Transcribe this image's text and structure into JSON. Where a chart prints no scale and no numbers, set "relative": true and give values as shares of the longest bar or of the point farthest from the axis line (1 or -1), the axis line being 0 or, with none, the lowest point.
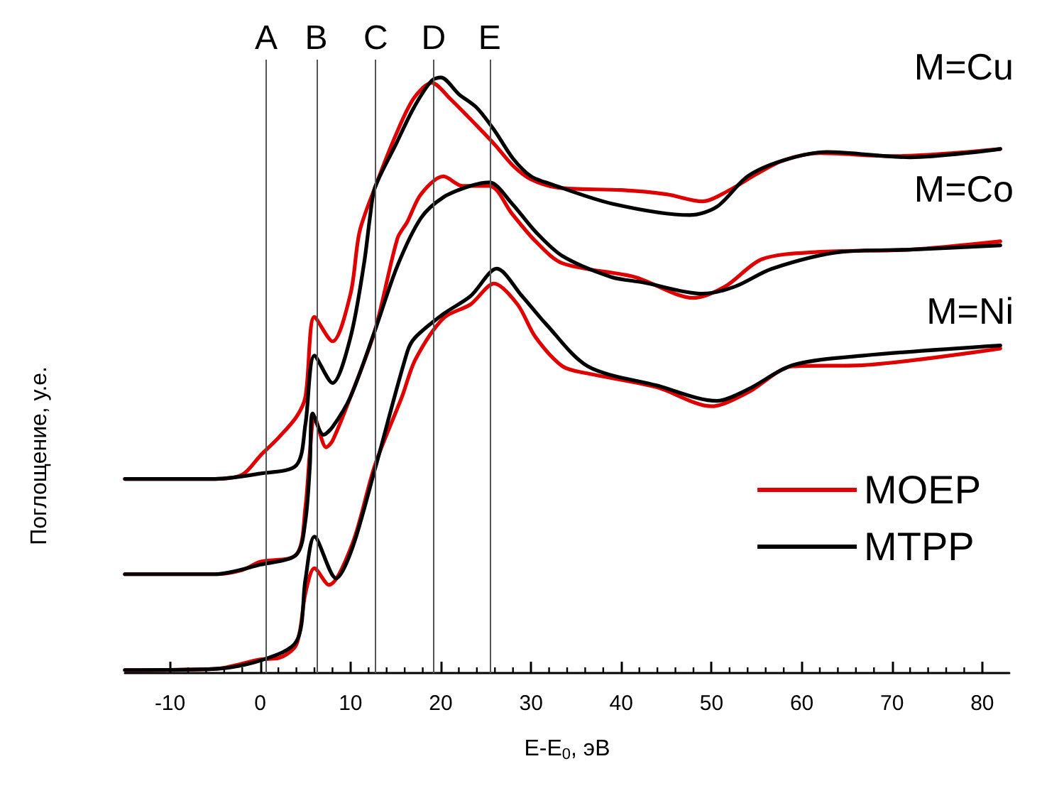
{
  "chart_data": {
    "type": "line",
    "relative": true,
    "xlabel": "E-E$_{0}$, эВ",
    "ylabel": "Поглощение, у.е.",
    "xlim": [
      -15,
      83
    ],
    "xticks": [
      -10,
      0,
      10,
      20,
      30,
      40,
      50,
      60,
      70,
      80
    ],
    "tick_labels": "x",
    "grid": false,
    "legend": "right",
    "marker": "none",
    "line_style": "solid",
    "series": [
      {
        "name": "MOEP",
        "color": "#e00000",
        "x": [
          -15,
          -5,
          -2,
          0,
          2,
          4,
          5,
          6,
          8,
          10,
          11,
          12.7,
          15,
          17,
          19,
          21,
          24,
          26,
          28,
          30,
          33,
          40,
          45,
          49,
          52,
          55,
          58,
          62,
          70,
          82
        ],
        "values": [
          0.326,
          0.326,
          0.333,
          0.365,
          0.395,
          0.43,
          0.464,
          0.598,
          0.557,
          0.637,
          0.741,
          0.815,
          0.903,
          0.965,
          0.991,
          0.965,
          0.919,
          0.887,
          0.852,
          0.829,
          0.815,
          0.811,
          0.804,
          0.792,
          0.811,
          0.838,
          0.861,
          0.873,
          0.868,
          0.88
        ]
      },
      {
        "name": "MTPP",
        "color": "#000000",
        "x": [
          -15,
          -5,
          0,
          4,
          5,
          6,
          8,
          10,
          11.5,
          12.2,
          12.7,
          15,
          17,
          19,
          20,
          22,
          24,
          26,
          28,
          30,
          32,
          39,
          47.6,
          50.6,
          54,
          58,
          62.8,
          72,
          82
        ],
        "values": [
          0.326,
          0.326,
          0.335,
          0.349,
          0.418,
          0.533,
          0.487,
          0.564,
          0.688,
          0.771,
          0.815,
          0.887,
          0.949,
          0.995,
          1,
          0.972,
          0.949,
          0.91,
          0.864,
          0.834,
          0.822,
          0.788,
          0.769,
          0.783,
          0.834,
          0.861,
          0.875,
          0.866,
          0.88
        ]
      },
      {
        "color": "#e00000",
        "x": [
          -15,
          -5,
          -2,
          0,
          4,
          5,
          5.5,
          6,
          7.3,
          8,
          10,
          12.7,
          15.2,
          16.3,
          17.8,
          20.3,
          22.4,
          25.4,
          27.9,
          30.5,
          33.5,
          41.5,
          48,
          51.5,
          55.6,
          61.7,
          72,
          82
        ],
        "values": [
          0.166,
          0.166,
          0.173,
          0.187,
          0.199,
          0.279,
          0.372,
          0.43,
          0.379,
          0.39,
          0.464,
          0.575,
          0.73,
          0.758,
          0.804,
          0.834,
          0.818,
          0.818,
          0.771,
          0.725,
          0.688,
          0.665,
          0.63,
          0.649,
          0.695,
          0.707,
          0.711,
          0.725
        ]
      },
      {
        "color": "#000000",
        "x": [
          -15,
          -5,
          0,
          4,
          5,
          5.5,
          5.8,
          7,
          8,
          10,
          12.7,
          15.2,
          17.8,
          20.3,
          23.3,
          25.4,
          27.9,
          30.5,
          33.5,
          38.9,
          42.4,
          49,
          52.6,
          56.7,
          64.3,
          72,
          82
        ],
        "values": [
          0.166,
          0.166,
          0.182,
          0.199,
          0.256,
          0.349,
          0.436,
          0.4,
          0.413,
          0.464,
          0.575,
          0.684,
          0.764,
          0.799,
          0.818,
          0.824,
          0.788,
          0.741,
          0.7,
          0.665,
          0.656,
          0.637,
          0.649,
          0.679,
          0.707,
          0.711,
          0.718
        ]
      },
      {
        "color": "#e00000",
        "x": [
          -15,
          -5,
          0,
          2,
          4,
          5,
          6,
          7.6,
          10.2,
          12.7,
          15.7,
          17.2,
          20.3,
          23.3,
          25.9,
          28.5,
          30.5,
          33.5,
          36.3,
          43.9,
          50,
          54,
          59,
          66.8,
          82
        ],
        "values": [
          0.005,
          0.007,
          0.023,
          0.025,
          0.048,
          0.134,
          0.176,
          0.148,
          0.217,
          0.349,
          0.464,
          0.527,
          0.596,
          0.619,
          0.654,
          0.619,
          0.564,
          0.515,
          0.503,
          0.48,
          0.448,
          0.471,
          0.515,
          0.517,
          0.545
        ]
      },
      {
        "color": "#000000",
        "x": [
          -15,
          -5,
          0,
          4,
          5,
          6,
          8.4,
          10.2,
          12.7,
          16.3,
          17.2,
          20.3,
          23.3,
          26.2,
          29,
          31.6,
          36.3,
          43.9,
          50.6,
          54,
          59,
          66.8,
          82
        ],
        "values": [
          0.005,
          0.007,
          0.021,
          0.053,
          0.157,
          0.229,
          0.159,
          0.21,
          0.342,
          0.54,
          0.564,
          0.603,
          0.633,
          0.679,
          0.633,
          0.587,
          0.515,
          0.483,
          0.457,
          0.476,
          0.517,
          0.533,
          0.55
        ]
      }
    ],
    "ref_lines": [
      {
        "axis": "x",
        "value": 0.66,
        "label": "A",
        "color": "#555555"
      },
      {
        "axis": "x",
        "value": 6.2,
        "label": "B",
        "color": "#555555"
      },
      {
        "axis": "x",
        "value": 12.8,
        "label": "C",
        "color": "#555555"
      },
      {
        "axis": "x",
        "value": 19.2,
        "label": "D",
        "color": "#555555"
      },
      {
        "axis": "x",
        "value": 25.4,
        "label": "E",
        "color": "#555555"
      }
    ],
    "annotations": [
      "M=Cu",
      "M=Co",
      "M=Ni"
    ]
  }
}
